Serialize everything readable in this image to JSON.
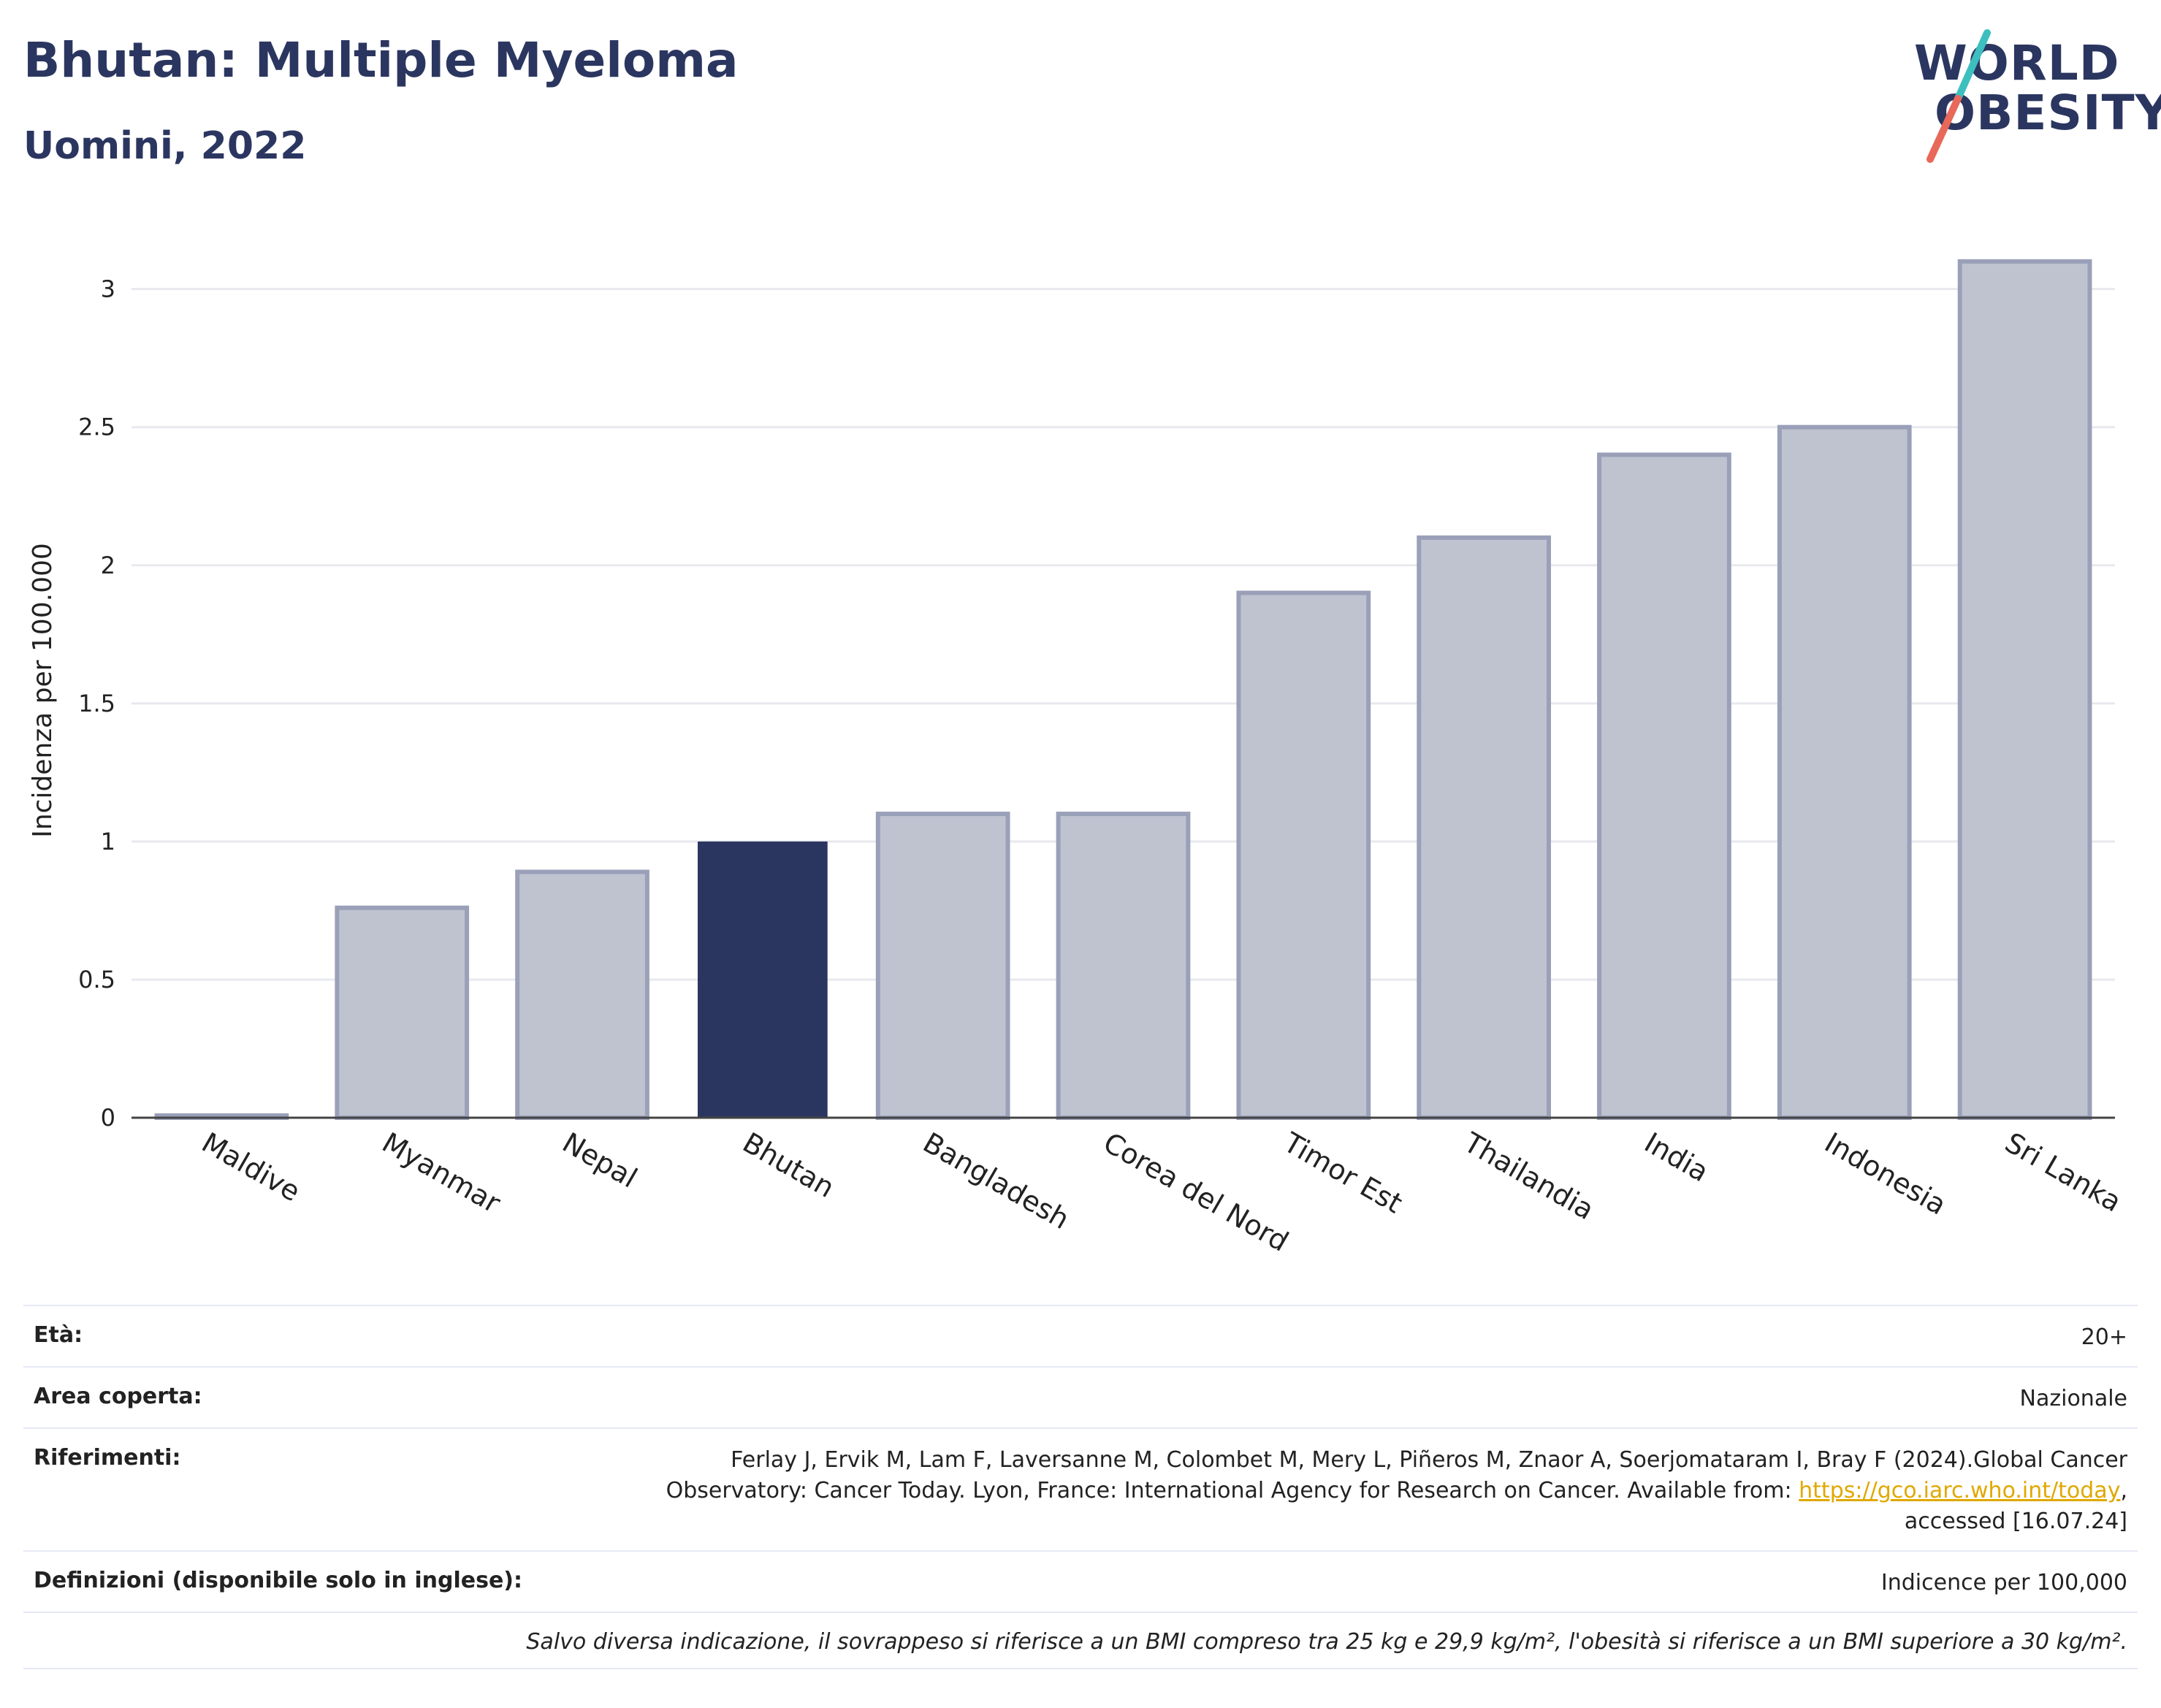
{
  "header": {
    "title": "Bhutan: Multiple Myeloma",
    "subtitle": "Uomini, 2022"
  },
  "logo": {
    "line1": "WORLD",
    "line2": "OBESITY",
    "slash_colors": [
      "#3dbfbf",
      "#e8685a"
    ]
  },
  "colors": {
    "highlight": "#2b3660",
    "bar_fill": "#bfc3d0",
    "bar_stroke": "#9aa0b8",
    "grid": "#e8e9ef"
  },
  "chart_data": {
    "type": "bar",
    "categories": [
      "Maldive",
      "Myanmar",
      "Nepal",
      "Bhutan",
      "Bangladesh",
      "Corea del Nord",
      "Timor Est",
      "Thailandia",
      "India",
      "Indonesia",
      "Sri Lanka"
    ],
    "values": [
      0,
      0.76,
      0.89,
      1.0,
      1.1,
      1.1,
      1.9,
      2.1,
      2.4,
      2.5,
      3.1
    ],
    "highlight": "Bhutan",
    "title": "",
    "xlabel": "",
    "ylabel": "Incidenza per 100.000",
    "ylim": [
      0,
      3.2
    ],
    "yticks": [
      0,
      0.5,
      1,
      1.5,
      2,
      2.5,
      3
    ],
    "ytick_labels": [
      "0",
      "0.5",
      "1",
      "1.5",
      "2",
      "2.5",
      "3"
    ],
    "grid": true,
    "legend": "none"
  },
  "table": {
    "age_label": "Età:",
    "age_value": "20+",
    "area_label": "Area coperta:",
    "area_value": "Nazionale",
    "refs_label": "Riferimenti:",
    "refs_line1": "Ferlay J, Ervik M, Lam F, Laversanne M, Colombet M, Mery L, Piñeros M, Znaor A, Soerjomataram I, Bray F (2024).Global Cancer",
    "refs_line2_pre": "Observatory: Cancer Today. Lyon, France: International Agency for Research on Cancer. Available from: ",
    "refs_link": "https://gco.iarc.who.int/today",
    "refs_line2_post": ",",
    "refs_line3": "accessed [16.07.24]",
    "def_label": "Definizioni (disponibile solo in inglese):",
    "def_value": "Indicence per 100,000",
    "note": "Salvo diversa indicazione, il sovrappeso si riferisce a un BMI compreso tra 25 kg e 29,9 kg/m², l'obesità si riferisce a un BMI superiore a 30 kg/m²."
  }
}
